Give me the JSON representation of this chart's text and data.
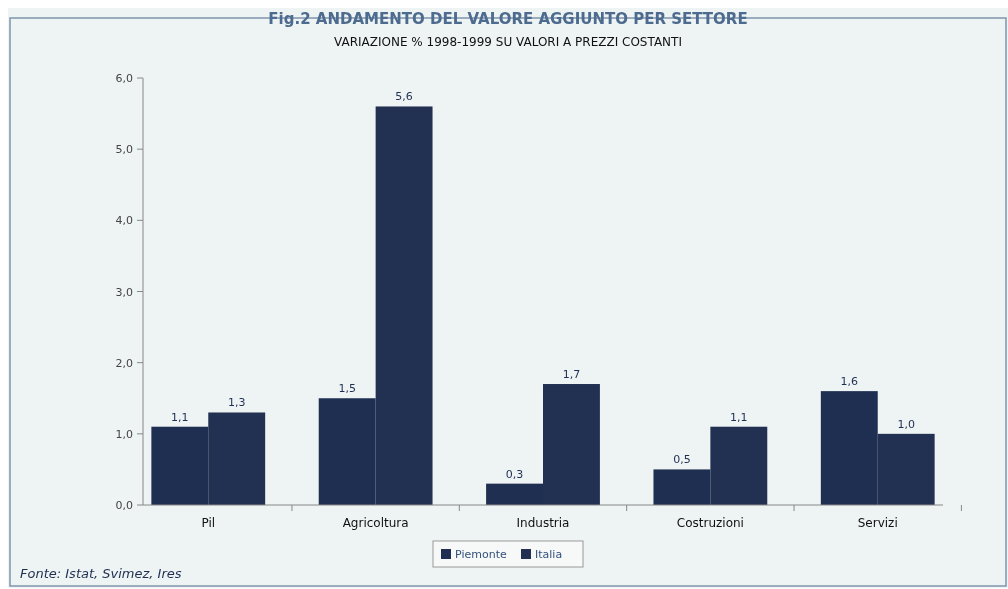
{
  "chart_data": {
    "type": "bar",
    "title": "Fig.2  ANDAMENTO DEL VALORE AGGIUNTO PER SETTORE",
    "subtitle": "VARIAZIONE % 1998-1999 SU VALORI A PREZZI COSTANTI",
    "categories": [
      "Pil",
      "Agricoltura",
      "Industria",
      "Costruzioni",
      "Servizi"
    ],
    "series": [
      {
        "name": "Piemonte",
        "color": "#1f2f52",
        "values": [
          1.1,
          1.5,
          0.3,
          0.5,
          1.6
        ]
      },
      {
        "name": "Italia",
        "color": "#223152",
        "values": [
          1.3,
          5.6,
          1.7,
          1.1,
          1.0
        ]
      }
    ],
    "ylim": [
      0,
      6
    ],
    "yticks": [
      {
        "value": 0,
        "label": "0,0"
      },
      {
        "value": 1,
        "label": "1,0"
      },
      {
        "value": 2,
        "label": "2,0"
      },
      {
        "value": 3,
        "label": "3,0"
      },
      {
        "value": 4,
        "label": "4,0"
      },
      {
        "value": 5,
        "label": "5,0"
      },
      {
        "value": 6,
        "label": "6,0"
      }
    ],
    "value_labels": [
      [
        "1,1",
        "1,5",
        "0,3",
        "0,5",
        "1,6"
      ],
      [
        "1,3",
        "5,6",
        "1,7",
        "1,1",
        "1,0"
      ]
    ],
    "legend": "bottom",
    "grid": false,
    "annotations": [
      "Fonte: Istat, Svimez, Ires"
    ]
  }
}
